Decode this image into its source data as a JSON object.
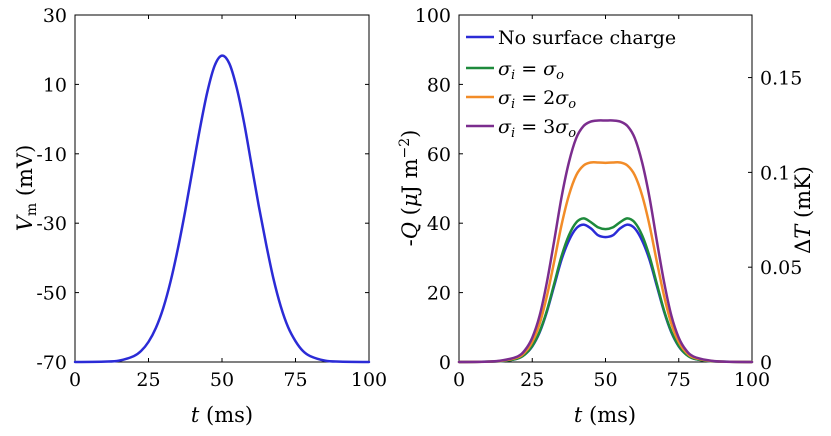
{
  "chart_data": [
    {
      "type": "line",
      "id": "left",
      "xlabel": "t (ms)",
      "ylabel": "V_m (mV)",
      "xlim": [
        0,
        100
      ],
      "ylim": [
        -70,
        30
      ],
      "xticks": [
        0,
        25,
        50,
        75,
        100
      ],
      "yticks": [
        -70,
        -50,
        -30,
        -10,
        10,
        30
      ],
      "series": [
        {
          "name": "V_m",
          "color": "#2b2bd6",
          "x": [
            0,
            10,
            15,
            20,
            22.5,
            25,
            27.5,
            30,
            32.5,
            35,
            37.5,
            40,
            42.5,
            45,
            47.5,
            50,
            52.5,
            55,
            57.5,
            60,
            62.5,
            65,
            67.5,
            70,
            72.5,
            75,
            77.5,
            80,
            85,
            90,
            100
          ],
          "y": [
            -70,
            -69.9,
            -69.6,
            -68.3,
            -66.8,
            -64.2,
            -60.2,
            -54.5,
            -46.8,
            -37.3,
            -26.4,
            -14.5,
            -2.7,
            7.8,
            15.4,
            18.3,
            16,
            9,
            -1,
            -13,
            -25,
            -36,
            -46,
            -54,
            -60,
            -64,
            -66.8,
            -68.3,
            -69.6,
            -69.9,
            -70
          ]
        }
      ]
    },
    {
      "type": "line",
      "id": "right",
      "xlabel": "t (ms)",
      "ylabel": "-Q (μJ m^-2)",
      "y2label": "ΔT (mK)",
      "xlim": [
        0,
        100
      ],
      "ylim": [
        0,
        100
      ],
      "y2lim": [
        0,
        0.183
      ],
      "xticks": [
        0,
        25,
        50,
        75,
        100
      ],
      "yticks": [
        0,
        20,
        40,
        60,
        80,
        100
      ],
      "y2ticks": [
        0,
        0.05,
        0.1,
        0.15
      ],
      "legend_position": "top-left",
      "series": [
        {
          "name": "No surface charge",
          "color": "#2b2bd6",
          "x": [
            0,
            10,
            15,
            20,
            22.5,
            25,
            27.5,
            30,
            32.5,
            35,
            37.5,
            40,
            42.5,
            45,
            47.5,
            50,
            52.5,
            55,
            57.5,
            60,
            62.5,
            65,
            67.5,
            70,
            72.5,
            75,
            77.5,
            80,
            85,
            90,
            100
          ],
          "y": [
            0,
            0.1,
            0.3,
            1,
            2.2,
            4.5,
            8.5,
            14.5,
            22,
            29.5,
            35,
            38.5,
            39.6,
            38.5,
            36.5,
            36,
            36.5,
            38.5,
            39.6,
            38.5,
            35,
            29.5,
            22,
            14.5,
            8.5,
            4.5,
            2.2,
            1,
            0.3,
            0.1,
            0
          ]
        },
        {
          "name": "σ_i = σ_o",
          "color": "#1e8a3c",
          "x": [
            0,
            10,
            15,
            20,
            22.5,
            25,
            27.5,
            30,
            32.5,
            35,
            37.5,
            40,
            42.5,
            45,
            47.5,
            50,
            52.5,
            55,
            57.5,
            60,
            62.5,
            65,
            67.5,
            70,
            72.5,
            75,
            77.5,
            80,
            85,
            90,
            100
          ],
          "y": [
            0,
            0.1,
            0.3,
            1,
            2.2,
            4.6,
            8.7,
            14.8,
            22.6,
            30.5,
            36.5,
            40.2,
            41.4,
            40.3,
            38.8,
            38.3,
            38.8,
            40.3,
            41.4,
            40.2,
            36.5,
            30.5,
            22.6,
            14.8,
            8.7,
            4.6,
            2.2,
            1,
            0.3,
            0.1,
            0
          ]
        },
        {
          "name": "σ_i = 2σ_o",
          "color": "#f28c28",
          "x": [
            0,
            10,
            15,
            20,
            22.5,
            25,
            27.5,
            30,
            32.5,
            35,
            37.5,
            40,
            42.5,
            45,
            47.5,
            50,
            52.5,
            55,
            57.5,
            60,
            62.5,
            65,
            67.5,
            70,
            72.5,
            75,
            77.5,
            80,
            85,
            90,
            100
          ],
          "y": [
            0,
            0.1,
            0.4,
            1.3,
            2.8,
            5.8,
            11,
            19,
            29,
            39.5,
            48,
            53.8,
            56.6,
            57.5,
            57.5,
            57.4,
            57.5,
            57.5,
            56.6,
            53.8,
            48,
            39.5,
            29,
            19,
            11,
            5.8,
            2.8,
            1.3,
            0.4,
            0.1,
            0
          ]
        },
        {
          "name": "σ_i = 3σ_o",
          "color": "#7b2d8e",
          "x": [
            0,
            10,
            15,
            20,
            22.5,
            25,
            27.5,
            30,
            32.5,
            35,
            37.5,
            40,
            42.5,
            45,
            47.5,
            50,
            52.5,
            55,
            57.5,
            60,
            62.5,
            65,
            67.5,
            70,
            72.5,
            75,
            77.5,
            80,
            85,
            90,
            100
          ],
          "y": [
            0,
            0.1,
            0.5,
            1.6,
            3.4,
            7,
            13.3,
            23,
            35,
            47.5,
            57.5,
            64.5,
            68,
            69.3,
            69.6,
            69.6,
            69.6,
            69.3,
            68,
            64.5,
            57.5,
            47.5,
            35,
            23,
            13.3,
            7,
            3.4,
            1.6,
            0.5,
            0.1,
            0
          ]
        }
      ]
    }
  ]
}
